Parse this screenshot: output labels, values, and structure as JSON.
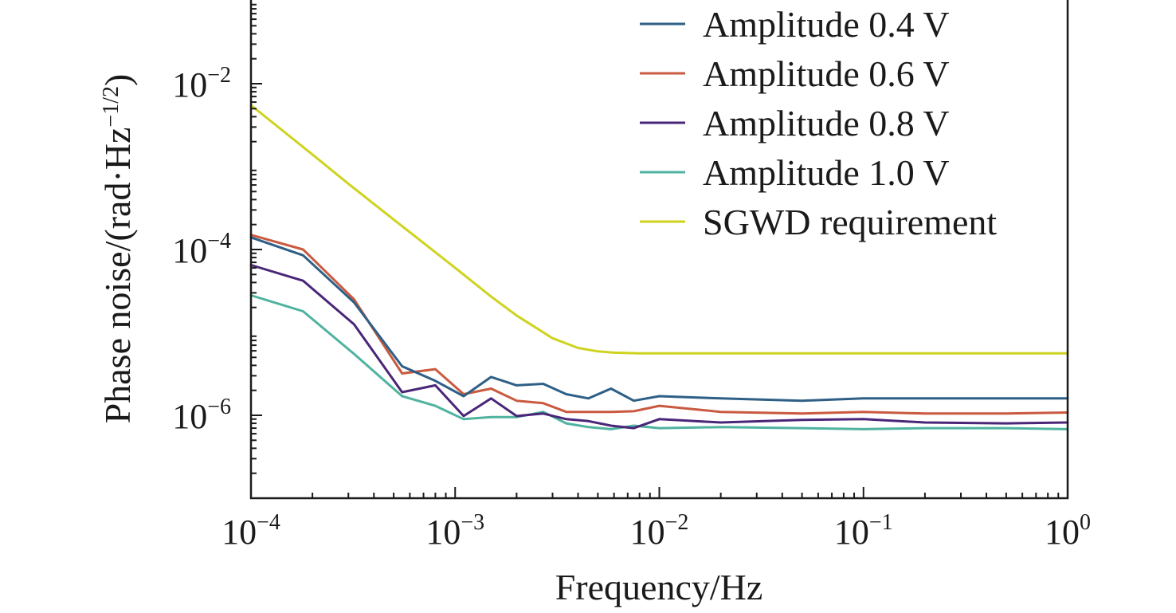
{
  "chart_data": {
    "type": "line",
    "xscale": "log",
    "yscale": "log",
    "xlim": [
      0.0001,
      1
    ],
    "ylim": [
      1e-07,
      0.1
    ],
    "xlabel": "Frequency/Hz",
    "ylabel": "Phase noise/(rad·Hz−1/2)",
    "ylabel_main": "Phase noise/(rad·Hz",
    "ylabel_sup": "−1/2",
    "ylabel_close": ")",
    "grid": false,
    "legend_position": "top-right",
    "x_ticks": [
      {
        "value": 0.0001,
        "base": "10",
        "exp": "−4"
      },
      {
        "value": 0.001,
        "base": "10",
        "exp": "−3"
      },
      {
        "value": 0.01,
        "base": "10",
        "exp": "−2"
      },
      {
        "value": 0.1,
        "base": "10",
        "exp": "−1"
      },
      {
        "value": 1,
        "base": "10",
        "exp": "0"
      }
    ],
    "y_ticks": [
      {
        "value": 1e-06,
        "base": "10",
        "exp": "−6"
      },
      {
        "value": 0.0001,
        "base": "10",
        "exp": "−4"
      },
      {
        "value": 0.01,
        "base": "10",
        "exp": "−2"
      }
    ],
    "series": [
      {
        "name": "Amplitude 0.4 V",
        "color": "#2e5f86",
        "x": [
          0.0001,
          0.00018,
          0.00032,
          0.00055,
          0.0008,
          0.0011,
          0.0015,
          0.002,
          0.0027,
          0.0035,
          0.0045,
          0.0058,
          0.0075,
          0.01,
          0.02,
          0.05,
          0.1,
          0.2,
          0.5,
          1
        ],
        "y": [
          0.00014,
          8.5e-05,
          2.3e-05,
          3.9e-06,
          2.6e-06,
          1.7e-06,
          2.9e-06,
          2.3e-06,
          2.4e-06,
          1.8e-06,
          1.6e-06,
          2.1e-06,
          1.5e-06,
          1.7e-06,
          1.6e-06,
          1.5e-06,
          1.6e-06,
          1.6e-06,
          1.6e-06,
          1.6e-06
        ]
      },
      {
        "name": "Amplitude 0.6 V",
        "color": "#c95a40",
        "x": [
          0.0001,
          0.00018,
          0.00032,
          0.00055,
          0.0008,
          0.0011,
          0.0015,
          0.002,
          0.0027,
          0.0035,
          0.0045,
          0.0058,
          0.0075,
          0.01,
          0.02,
          0.05,
          0.1,
          0.2,
          0.5,
          1
        ],
        "y": [
          0.00015,
          0.0001,
          2.5e-05,
          3.2e-06,
          3.6e-06,
          1.8e-06,
          2.1e-06,
          1.5e-06,
          1.4e-06,
          1.1e-06,
          1.1e-06,
          1.1e-06,
          1.12e-06,
          1.3e-06,
          1.1e-06,
          1.05e-06,
          1.1e-06,
          1.05e-06,
          1.05e-06,
          1.08e-06
        ]
      },
      {
        "name": "Amplitude 0.8 V",
        "color": "#4a2678",
        "x": [
          0.0001,
          0.00018,
          0.00032,
          0.00055,
          0.0008,
          0.0011,
          0.0015,
          0.002,
          0.0027,
          0.0035,
          0.0045,
          0.0058,
          0.0075,
          0.01,
          0.02,
          0.05,
          0.1,
          0.2,
          0.5,
          1
        ],
        "y": [
          6.5e-05,
          4.2e-05,
          1.25e-05,
          1.9e-06,
          2.3e-06,
          9.8e-07,
          1.6e-06,
          9.8e-07,
          1.05e-06,
          9e-07,
          8.5e-07,
          7.5e-07,
          7e-07,
          9e-07,
          8.2e-07,
          8.8e-07,
          9e-07,
          8.2e-07,
          8e-07,
          8.2e-07
        ]
      },
      {
        "name": "Amplitude 1.0 V",
        "color": "#4fb39f",
        "x": [
          0.0001,
          0.00018,
          0.00032,
          0.00055,
          0.0008,
          0.0011,
          0.0015,
          0.002,
          0.0027,
          0.0035,
          0.0045,
          0.0058,
          0.0075,
          0.01,
          0.02,
          0.05,
          0.1,
          0.2,
          0.5,
          1
        ],
        "y": [
          2.8e-05,
          1.8e-05,
          5.5e-06,
          1.7e-06,
          1.3e-06,
          9e-07,
          9.5e-07,
          9.5e-07,
          1.1e-06,
          8e-07,
          7.2e-07,
          6.8e-07,
          7.5e-07,
          7e-07,
          7.2e-07,
          7e-07,
          6.8e-07,
          7e-07,
          7e-07,
          6.8e-07
        ]
      },
      {
        "name": "SGWD requirement",
        "color": "#cfd31f",
        "x": [
          0.0001,
          0.0002,
          0.0003,
          0.0005,
          0.0007,
          0.001,
          0.0015,
          0.002,
          0.003,
          0.004,
          0.005,
          0.006,
          0.008,
          0.01,
          0.03,
          0.1,
          0.3,
          1
        ],
        "y": [
          0.0055,
          0.0014,
          0.00062,
          0.00023,
          0.00012,
          6e-05,
          2.7e-05,
          1.6e-05,
          8.5e-06,
          6.5e-06,
          5.9e-06,
          5.7e-06,
          5.6e-06,
          5.6e-06,
          5.6e-06,
          5.6e-06,
          5.6e-06,
          5.6e-06
        ]
      }
    ]
  }
}
